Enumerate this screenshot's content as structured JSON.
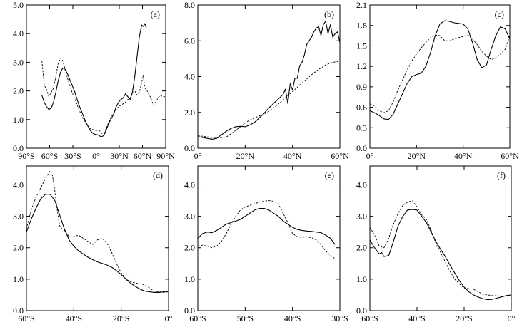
{
  "chart_data": [
    {
      "id": "a",
      "type": "line",
      "label": "(a)",
      "xlim": [
        -90,
        90
      ],
      "ylim": [
        0,
        5
      ],
      "xticks": [
        -90,
        -60,
        -30,
        0,
        30,
        60,
        90
      ],
      "xtick_labels": [
        "90°S",
        "60°S",
        "30°S",
        "0°",
        "30°N",
        "60°N",
        "90°N"
      ],
      "yticks": [
        0,
        1,
        2,
        3,
        4,
        5
      ],
      "ytick_labels": [
        "0.0",
        "1.0",
        "2.0",
        "3.0",
        "4.0",
        "5.0"
      ],
      "series": [
        {
          "name": "solid",
          "style": "solid",
          "x": [
            -70,
            -67,
            -64,
            -61,
            -58,
            -55,
            -52,
            -49,
            -46,
            -43,
            -40,
            -37,
            -34,
            -31,
            -28,
            -25,
            -22,
            -19,
            -16,
            -13,
            -10,
            -7,
            -4,
            -1,
            2,
            5,
            8,
            11,
            14,
            17,
            20,
            23,
            26,
            29,
            32,
            35,
            38,
            41,
            44,
            47,
            50,
            53,
            56,
            59,
            61,
            63,
            65
          ],
          "y": [
            1.85,
            1.6,
            1.45,
            1.35,
            1.4,
            1.6,
            1.95,
            2.35,
            2.65,
            2.8,
            2.75,
            2.6,
            2.4,
            2.2,
            2.0,
            1.75,
            1.5,
            1.3,
            1.1,
            0.9,
            0.75,
            0.6,
            0.52,
            0.48,
            0.47,
            0.42,
            0.4,
            0.5,
            0.7,
            0.9,
            1.05,
            1.2,
            1.45,
            1.6,
            1.7,
            1.75,
            1.9,
            1.8,
            1.7,
            1.95,
            2.5,
            3.2,
            3.9,
            4.3,
            4.25,
            4.35,
            4.2
          ]
        },
        {
          "name": "dashed",
          "style": "dashed",
          "x": [
            -70,
            -67,
            -64,
            -61,
            -58,
            -55,
            -52,
            -49,
            -46,
            -43,
            -40,
            -37,
            -34,
            -31,
            -28,
            -25,
            -22,
            -19,
            -16,
            -13,
            -10,
            -7,
            -4,
            -1,
            2,
            5,
            8,
            11,
            14,
            17,
            20,
            23,
            26,
            29,
            32,
            35,
            38,
            41,
            44,
            47,
            50,
            53,
            56,
            59,
            61,
            63,
            65,
            68,
            71,
            74,
            77,
            80,
            83,
            86,
            89
          ],
          "y": [
            3.05,
            2.2,
            2.05,
            1.8,
            1.95,
            2.1,
            2.5,
            2.95,
            3.15,
            3.05,
            2.75,
            2.45,
            2.2,
            1.95,
            1.75,
            1.55,
            1.35,
            1.15,
            1.0,
            0.85,
            0.75,
            0.68,
            0.65,
            0.62,
            0.62,
            0.6,
            0.5,
            0.55,
            0.75,
            0.95,
            1.1,
            1.25,
            1.35,
            1.45,
            1.5,
            1.55,
            1.6,
            1.7,
            1.75,
            1.9,
            2.0,
            1.85,
            1.95,
            2.3,
            2.55,
            2.1,
            2.05,
            1.9,
            1.75,
            1.5,
            1.6,
            1.75,
            1.85,
            1.8,
            1.8
          ]
        }
      ]
    },
    {
      "id": "b",
      "type": "line",
      "label": "(b)",
      "xlim": [
        0,
        60
      ],
      "ylim": [
        0,
        8
      ],
      "xticks": [
        0,
        20,
        40,
        60
      ],
      "xtick_labels": [
        "0°",
        "20°N",
        "40°N",
        "60°N"
      ],
      "yticks": [
        0,
        2,
        4,
        6,
        8
      ],
      "ytick_labels": [
        "0.0",
        "2.0",
        "4.0",
        "6.0",
        "8.0"
      ],
      "series": [
        {
          "name": "solid",
          "style": "solid",
          "x": [
            0,
            2,
            4,
            6,
            8,
            10,
            12,
            14,
            16,
            18,
            20,
            22,
            24,
            26,
            28,
            30,
            32,
            34,
            36,
            37,
            38,
            39,
            40,
            41,
            42,
            43,
            44,
            45,
            46,
            47,
            48,
            49,
            50,
            51,
            52,
            53,
            54,
            55,
            56,
            57,
            58,
            59,
            60
          ],
          "y": [
            0.65,
            0.6,
            0.55,
            0.5,
            0.55,
            0.75,
            0.95,
            1.1,
            1.2,
            1.22,
            1.2,
            1.3,
            1.45,
            1.7,
            1.95,
            2.25,
            2.5,
            2.75,
            3.0,
            3.3,
            2.5,
            3.6,
            3.25,
            3.9,
            3.9,
            4.6,
            4.8,
            5.2,
            5.8,
            6.0,
            6.2,
            6.5,
            6.7,
            6.8,
            6.3,
            6.9,
            7.1,
            6.4,
            6.9,
            6.2,
            6.4,
            6.5,
            5.9
          ]
        },
        {
          "name": "dashed",
          "style": "dashed",
          "x": [
            0,
            3,
            6,
            9,
            12,
            15,
            18,
            21,
            24,
            27,
            30,
            33,
            36,
            39,
            42,
            45,
            48,
            51,
            54,
            57,
            60
          ],
          "y": [
            0.7,
            0.65,
            0.6,
            0.58,
            0.62,
            0.9,
            1.2,
            1.5,
            1.7,
            1.85,
            2.05,
            2.35,
            2.7,
            3.05,
            3.4,
            3.75,
            4.1,
            4.4,
            4.65,
            4.8,
            4.85
          ]
        }
      ]
    },
    {
      "id": "c",
      "type": "line",
      "label": "(c)",
      "xlim": [
        0,
        60
      ],
      "ylim": [
        0,
        2.1
      ],
      "xticks": [
        0,
        20,
        40,
        60
      ],
      "xtick_labels": [
        "0°",
        "20°N",
        "40°N",
        "60°N"
      ],
      "yticks": [
        0,
        0.3,
        0.6,
        0.9,
        1.2,
        1.5,
        1.8,
        2.1
      ],
      "ytick_labels": [
        "0.0",
        "0.3",
        "0.6",
        "0.9",
        "1.2",
        "1.5",
        "1.8",
        "2.1"
      ],
      "series": [
        {
          "name": "solid",
          "style": "solid",
          "x": [
            0,
            2,
            4,
            6,
            8,
            10,
            12,
            14,
            16,
            18,
            20,
            22,
            24,
            26,
            28,
            30,
            32,
            34,
            36,
            38,
            40,
            42,
            44,
            46,
            48,
            50,
            52,
            54,
            56,
            58,
            60
          ],
          "y": [
            0.55,
            0.52,
            0.48,
            0.43,
            0.42,
            0.5,
            0.65,
            0.8,
            0.95,
            1.05,
            1.08,
            1.1,
            1.2,
            1.4,
            1.65,
            1.82,
            1.87,
            1.86,
            1.84,
            1.83,
            1.82,
            1.75,
            1.55,
            1.3,
            1.18,
            1.22,
            1.45,
            1.65,
            1.78,
            1.75,
            1.6
          ]
        },
        {
          "name": "dashed",
          "style": "dashed",
          "x": [
            0,
            2,
            4,
            6,
            8,
            10,
            12,
            14,
            16,
            18,
            20,
            22,
            24,
            26,
            28,
            30,
            32,
            34,
            36,
            38,
            40,
            42,
            44,
            46,
            48,
            50,
            52,
            54,
            56,
            58,
            60
          ],
          "y": [
            0.65,
            0.62,
            0.55,
            0.52,
            0.55,
            0.68,
            0.85,
            1.0,
            1.15,
            1.28,
            1.38,
            1.47,
            1.55,
            1.62,
            1.66,
            1.65,
            1.58,
            1.57,
            1.6,
            1.62,
            1.64,
            1.66,
            1.6,
            1.52,
            1.42,
            1.35,
            1.3,
            1.32,
            1.38,
            1.45,
            1.65
          ]
        }
      ]
    },
    {
      "id": "d",
      "type": "line",
      "label": "(d)",
      "xlim": [
        -60,
        0
      ],
      "ylim": [
        0,
        4.6
      ],
      "xticks": [
        -60,
        -40,
        -20,
        0
      ],
      "xtick_labels": [
        "60°S",
        "40°S",
        "20°S",
        "0°"
      ],
      "yticks": [
        0,
        1,
        2,
        3,
        4
      ],
      "ytick_labels": [
        "0.0",
        "1.0",
        "2.0",
        "3.0",
        "4.0"
      ],
      "series": [
        {
          "name": "solid",
          "style": "solid",
          "x": [
            -60,
            -58,
            -56,
            -54,
            -52,
            -50,
            -48,
            -46,
            -44,
            -42,
            -40,
            -38,
            -36,
            -34,
            -32,
            -30,
            -28,
            -26,
            -24,
            -22,
            -20,
            -18,
            -16,
            -14,
            -12,
            -10,
            -8,
            -6,
            -4,
            -2,
            0
          ],
          "y": [
            2.5,
            2.9,
            3.25,
            3.55,
            3.7,
            3.7,
            3.5,
            3.05,
            2.6,
            2.25,
            2.05,
            1.9,
            1.8,
            1.7,
            1.62,
            1.55,
            1.5,
            1.45,
            1.38,
            1.27,
            1.15,
            1.0,
            0.87,
            0.77,
            0.68,
            0.62,
            0.6,
            0.58,
            0.58,
            0.6,
            0.62
          ]
        },
        {
          "name": "dashed",
          "style": "dashed",
          "x": [
            -60,
            -58,
            -56,
            -54,
            -52,
            -50,
            -49,
            -48,
            -47,
            -46,
            -45,
            -44,
            -42,
            -40,
            -38,
            -36,
            -34,
            -32,
            -30,
            -28,
            -26,
            -24,
            -22,
            -20,
            -18,
            -16,
            -14,
            -12,
            -10,
            -8,
            -6,
            -4,
            -2,
            0
          ],
          "y": [
            2.6,
            3.2,
            3.6,
            3.9,
            4.2,
            4.45,
            4.3,
            3.8,
            3.2,
            2.7,
            2.6,
            2.55,
            2.35,
            2.35,
            2.4,
            2.3,
            2.2,
            2.1,
            2.25,
            2.3,
            2.15,
            1.85,
            1.5,
            1.2,
            1.0,
            0.92,
            0.88,
            0.85,
            0.82,
            0.72,
            0.62,
            0.6,
            0.58,
            0.6
          ]
        }
      ]
    },
    {
      "id": "e",
      "type": "line",
      "label": "(e)",
      "xlim": [
        -60,
        -30
      ],
      "ylim": [
        0,
        4.6
      ],
      "xticks": [
        -60,
        -50,
        -40,
        -30
      ],
      "xtick_labels": [
        "60°S",
        "50°S",
        "40°S",
        "30°S"
      ],
      "yticks": [
        0,
        1,
        2,
        3,
        4
      ],
      "ytick_labels": [
        "0.0",
        "1.0",
        "2.0",
        "3.0",
        "4.0"
      ],
      "series": [
        {
          "name": "solid",
          "style": "solid",
          "x": [
            -60,
            -59,
            -58,
            -57,
            -56,
            -55,
            -54,
            -53,
            -52,
            -51,
            -50,
            -49,
            -48,
            -47,
            -46,
            -45,
            -44,
            -43,
            -42,
            -41,
            -40,
            -39,
            -38,
            -37,
            -36,
            -35,
            -34,
            -33,
            -32,
            -31
          ],
          "y": [
            2.3,
            2.45,
            2.5,
            2.48,
            2.55,
            2.65,
            2.75,
            2.8,
            2.85,
            2.9,
            3.0,
            3.1,
            3.2,
            3.25,
            3.25,
            3.2,
            3.1,
            3.0,
            2.85,
            2.75,
            2.65,
            2.58,
            2.55,
            2.53,
            2.52,
            2.5,
            2.48,
            2.4,
            2.3,
            2.1
          ]
        },
        {
          "name": "dashed",
          "style": "dashed",
          "x": [
            -60,
            -59,
            -58,
            -57,
            -56,
            -55,
            -54,
            -53,
            -52,
            -51,
            -50,
            -49,
            -48,
            -47,
            -46,
            -45,
            -44,
            -43,
            -42,
            -41,
            -40,
            -39,
            -38,
            -37,
            -36,
            -35,
            -34,
            -33,
            -32,
            -31
          ],
          "y": [
            2.05,
            2.08,
            2.05,
            2.0,
            2.05,
            2.2,
            2.45,
            2.75,
            3.0,
            3.2,
            3.3,
            3.35,
            3.4,
            3.45,
            3.48,
            3.5,
            3.48,
            3.4,
            3.1,
            2.8,
            2.45,
            2.35,
            2.33,
            2.35,
            2.32,
            2.25,
            2.1,
            1.9,
            1.75,
            1.65
          ]
        }
      ]
    },
    {
      "id": "f",
      "type": "line",
      "label": "(f)",
      "xlim": [
        -60,
        0
      ],
      "ylim": [
        0,
        4.6
      ],
      "xticks": [
        -60,
        -40,
        -20,
        0
      ],
      "xtick_labels": [
        "60°S",
        "40°S",
        "20°S",
        "0°"
      ],
      "yticks": [
        0,
        1,
        2,
        3,
        4
      ],
      "ytick_labels": [
        "0.0",
        "1.0",
        "2.0",
        "3.0",
        "4.0"
      ],
      "series": [
        {
          "name": "solid",
          "style": "solid",
          "x": [
            -60,
            -58,
            -56,
            -55,
            -54,
            -52,
            -50,
            -48,
            -46,
            -44,
            -42,
            -40,
            -38,
            -36,
            -34,
            -32,
            -30,
            -28,
            -26,
            -24,
            -22,
            -20,
            -18,
            -16,
            -14,
            -12,
            -10,
            -8,
            -6,
            -4,
            -2,
            0
          ],
          "y": [
            2.25,
            2.0,
            1.8,
            1.85,
            1.72,
            1.75,
            2.2,
            2.7,
            3.0,
            3.2,
            3.22,
            3.2,
            3.0,
            2.8,
            2.5,
            2.2,
            1.95,
            1.72,
            1.45,
            1.2,
            0.95,
            0.75,
            0.6,
            0.5,
            0.43,
            0.38,
            0.35,
            0.36,
            0.4,
            0.44,
            0.48,
            0.5
          ]
        },
        {
          "name": "dashed",
          "style": "dashed",
          "x": [
            -60,
            -58,
            -56,
            -54,
            -52,
            -50,
            -48,
            -46,
            -44,
            -42,
            -40,
            -38,
            -36,
            -34,
            -32,
            -30,
            -28,
            -26,
            -24,
            -22,
            -20,
            -18,
            -16,
            -14,
            -12,
            -10,
            -8,
            -6,
            -4,
            -2,
            0
          ],
          "y": [
            2.65,
            2.4,
            2.05,
            2.0,
            2.3,
            2.75,
            3.1,
            3.35,
            3.45,
            3.5,
            3.3,
            3.05,
            2.9,
            2.55,
            2.15,
            1.85,
            1.55,
            1.25,
            1.0,
            0.85,
            0.72,
            0.7,
            0.68,
            0.6,
            0.52,
            0.5,
            0.48,
            0.47,
            0.46,
            0.47,
            0.5
          ]
        }
      ]
    }
  ]
}
